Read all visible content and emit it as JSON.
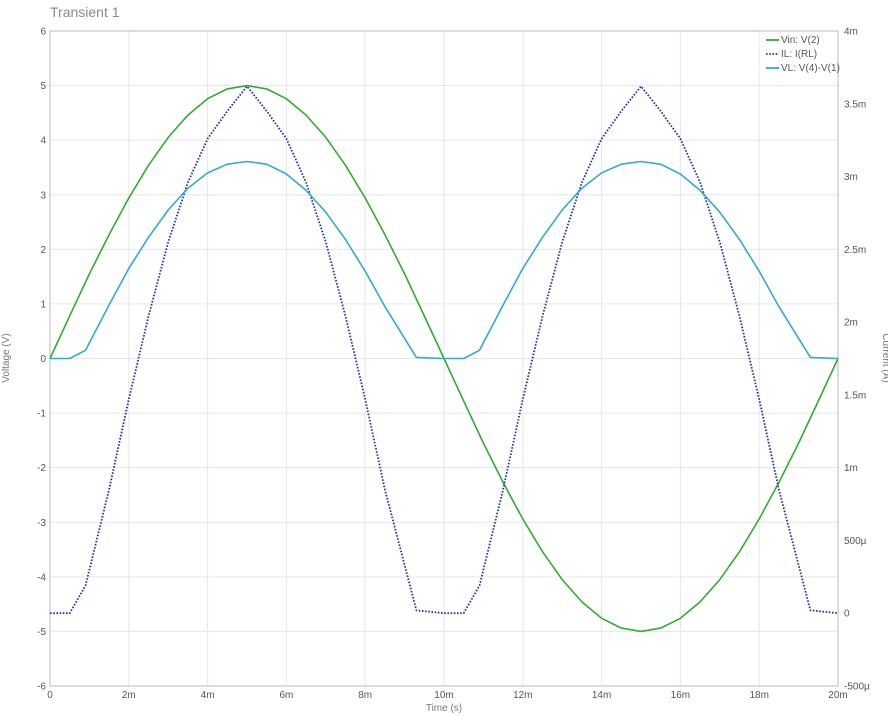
{
  "window": {
    "title": "Transient 1"
  },
  "chart_data": {
    "type": "line",
    "title": "Transient 1",
    "xlabel": "Time (s)",
    "ylabel_left": "Voltage (V)",
    "ylabel_right": "Current (A)",
    "xlim": [
      0,
      0.02
    ],
    "ylim_left": [
      -6,
      6
    ],
    "ylim_right": [
      -0.0005,
      0.004
    ],
    "x_ticks": [
      0,
      0.002,
      0.004,
      0.006,
      0.008,
      0.01,
      0.012,
      0.014,
      0.016,
      0.018,
      0.02
    ],
    "x_tick_labels": [
      "0",
      "2m",
      "4m",
      "6m",
      "8m",
      "10m",
      "12m",
      "14m",
      "16m",
      "18m",
      "20m"
    ],
    "y_left_ticks": [
      -6,
      -5,
      -4,
      -3,
      -2,
      -1,
      0,
      1,
      2,
      3,
      4,
      5,
      6
    ],
    "y_left_tick_labels": [
      "-6",
      "-5",
      "-4",
      "-3",
      "-2",
      "-1",
      "0",
      "1",
      "2",
      "3",
      "4",
      "5",
      "6"
    ],
    "y_right_ticks": [
      -0.0005,
      0,
      0.0005,
      0.001,
      0.0015,
      0.002,
      0.0025,
      0.003,
      0.0035,
      0.004
    ],
    "y_right_tick_labels": [
      "-500µ",
      "0",
      "500µ",
      "1m",
      "1.5m",
      "2m",
      "2.5m",
      "3m",
      "3.5m",
      "4m"
    ],
    "grid": true,
    "legend": "top-right",
    "series": [
      {
        "name": "Vin: V(2)",
        "axis": "left",
        "color": "#33aa33",
        "style": "solid",
        "x": [
          0,
          0.0005,
          0.001,
          0.0015,
          0.002,
          0.0025,
          0.003,
          0.0035,
          0.004,
          0.0045,
          0.005,
          0.0055,
          0.006,
          0.0065,
          0.007,
          0.0075,
          0.008,
          0.0085,
          0.009,
          0.0095,
          0.01,
          0.0105,
          0.011,
          0.0115,
          0.012,
          0.0125,
          0.013,
          0.0135,
          0.014,
          0.0145,
          0.015,
          0.0155,
          0.016,
          0.0165,
          0.017,
          0.0175,
          0.018,
          0.0185,
          0.019,
          0.0195,
          0.02
        ],
        "y": [
          0,
          0.78,
          1.55,
          2.27,
          2.94,
          3.54,
          4.05,
          4.46,
          4.76,
          4.94,
          5.0,
          4.94,
          4.76,
          4.46,
          4.05,
          3.54,
          2.94,
          2.27,
          1.55,
          0.78,
          0,
          -0.78,
          -1.55,
          -2.27,
          -2.94,
          -3.54,
          -4.05,
          -4.46,
          -4.76,
          -4.94,
          -5.0,
          -4.94,
          -4.76,
          -4.46,
          -4.05,
          -3.54,
          -2.94,
          -2.27,
          -1.55,
          -0.78,
          0
        ]
      },
      {
        "name": "IL: I(RL)",
        "axis": "right",
        "color": "#2233aa",
        "style": "dotted",
        "x": [
          0,
          0.0005,
          0.0009,
          0.0015,
          0.002,
          0.0025,
          0.003,
          0.0035,
          0.004,
          0.0045,
          0.005,
          0.0055,
          0.006,
          0.0065,
          0.007,
          0.0075,
          0.008,
          0.0085,
          0.0093,
          0.01,
          0.0105,
          0.0109,
          0.0115,
          0.012,
          0.0125,
          0.013,
          0.0135,
          0.014,
          0.0145,
          0.015,
          0.0155,
          0.016,
          0.0165,
          0.017,
          0.0175,
          0.018,
          0.0185,
          0.0193,
          0.02
        ],
        "y": [
          0,
          0,
          0.00019,
          0.00085,
          0.00147,
          0.00204,
          0.00255,
          0.00296,
          0.00326,
          0.00345,
          0.00362,
          0.00345,
          0.00326,
          0.00296,
          0.00255,
          0.00204,
          0.00147,
          0.00085,
          2e-05,
          0,
          0,
          0.00019,
          0.00085,
          0.00147,
          0.00204,
          0.00255,
          0.00296,
          0.00326,
          0.00345,
          0.00362,
          0.00345,
          0.00326,
          0.00296,
          0.00255,
          0.00204,
          0.00147,
          0.00085,
          2e-05,
          0
        ]
      },
      {
        "name": "VL: V(4)-V(1)",
        "axis": "left",
        "color": "#33aacc",
        "style": "solid",
        "x": [
          0,
          0.0005,
          0.0009,
          0.0015,
          0.002,
          0.0025,
          0.003,
          0.0035,
          0.004,
          0.0045,
          0.005,
          0.0055,
          0.006,
          0.0065,
          0.007,
          0.0075,
          0.008,
          0.0085,
          0.0093,
          0.01,
          0.0105,
          0.0109,
          0.0115,
          0.012,
          0.0125,
          0.013,
          0.0135,
          0.014,
          0.0145,
          0.015,
          0.0155,
          0.016,
          0.0165,
          0.017,
          0.0175,
          0.018,
          0.0185,
          0.0193,
          0.02
        ],
        "y": [
          0,
          0,
          0.15,
          0.98,
          1.65,
          2.22,
          2.72,
          3.12,
          3.4,
          3.56,
          3.61,
          3.56,
          3.38,
          3.08,
          2.68,
          2.18,
          1.6,
          0.95,
          0.02,
          0,
          0,
          0.15,
          0.98,
          1.65,
          2.22,
          2.72,
          3.12,
          3.4,
          3.56,
          3.61,
          3.56,
          3.38,
          3.08,
          2.68,
          2.18,
          1.6,
          0.95,
          0.02,
          0
        ]
      }
    ]
  }
}
